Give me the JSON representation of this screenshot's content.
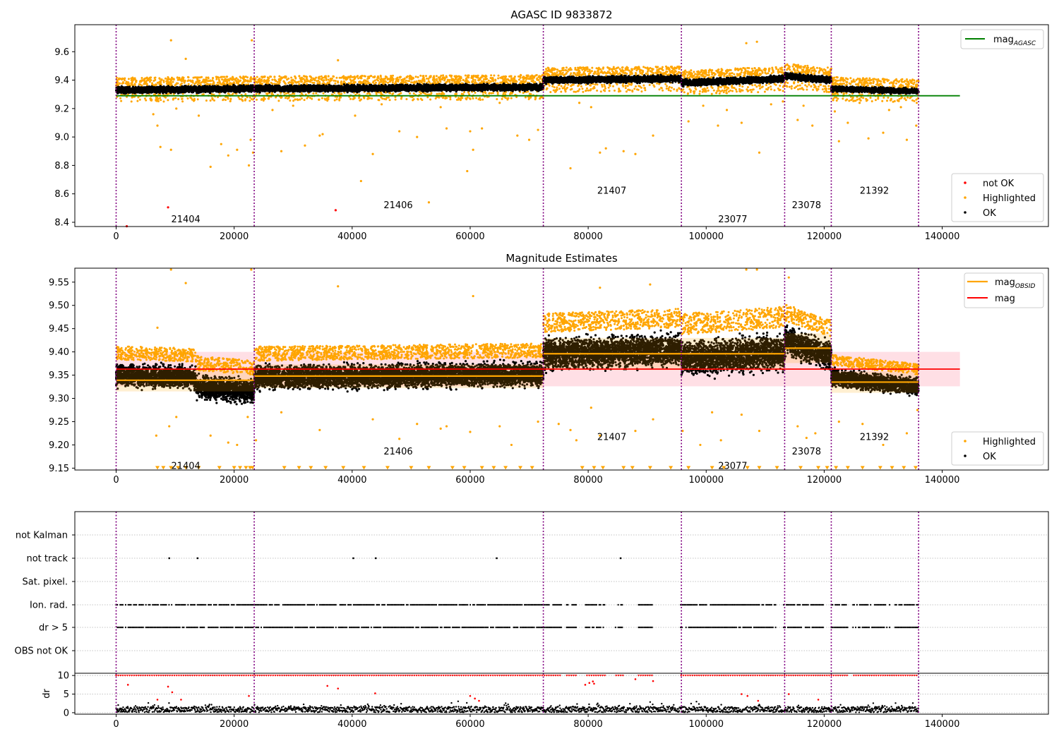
{
  "figure": {
    "panel1_title": "AGASC ID 9833872",
    "panel2_title": "Magnitude Estimates"
  },
  "colors": {
    "ok": "#000000",
    "highlighted": "#ffa500",
    "not_ok": "#ff0000",
    "mag_agasc": "#008000",
    "mag_obsid": "#ffa500",
    "mag": "#ff0000",
    "mag_band": "#ffc0cb",
    "obs_boundary": "#800080",
    "grid": "#b0b0b0"
  },
  "chart_data": [
    {
      "type": "scatter",
      "title": "AGASC ID 9833872",
      "xlim": [
        -7000,
        158000
      ],
      "ylim": [
        8.37,
        9.79
      ],
      "xticks": [
        0,
        20000,
        40000,
        60000,
        80000,
        100000,
        120000,
        140000
      ],
      "xtick_labels": [
        "0",
        "20000",
        "40000",
        "60000",
        "80000",
        "100000",
        "120000",
        "140000"
      ],
      "yticks": [
        8.4,
        8.6,
        8.8,
        9.0,
        9.2,
        9.4,
        9.6
      ],
      "ytick_labels": [
        "8.4",
        "8.6",
        "8.8",
        "9.0",
        "9.2",
        "9.4",
        "9.6"
      ],
      "obs_boundaries": [
        0,
        23400,
        72400,
        95800,
        113300,
        121200,
        136000
      ],
      "obsids": [
        {
          "label": "21404",
          "x": 11800,
          "y": 8.425
        },
        {
          "label": "21406",
          "x": 47800,
          "y": 8.525
        },
        {
          "label": "21407",
          "x": 84000,
          "y": 8.625
        },
        {
          "label": "23077",
          "x": 104500,
          "y": 8.425
        },
        {
          "label": "23078",
          "x": 117000,
          "y": 8.525
        },
        {
          "label": "21392",
          "x": 128500,
          "y": 8.625
        }
      ],
      "ok_bands": [
        {
          "x0": 0,
          "x1": 23400,
          "y0": 9.33,
          "y1": 9.34,
          "spread": 0.03
        },
        {
          "x0": 23400,
          "x1": 72400,
          "y0": 9.34,
          "y1": 9.35,
          "spread": 0.03
        },
        {
          "x0": 72400,
          "x1": 95800,
          "y0": 9.4,
          "y1": 9.41,
          "spread": 0.03
        },
        {
          "x0": 95800,
          "x1": 113300,
          "y0": 9.38,
          "y1": 9.41,
          "spread": 0.03
        },
        {
          "x0": 113300,
          "x1": 121200,
          "y0": 9.43,
          "y1": 9.4,
          "spread": 0.03
        },
        {
          "x0": 121200,
          "x1": 136000,
          "y0": 9.34,
          "y1": 9.32,
          "spread": 0.025
        }
      ],
      "highlighted_points": [
        [
          9300,
          9.68
        ],
        [
          11800,
          9.55
        ],
        [
          23000,
          9.68
        ],
        [
          37600,
          9.54
        ],
        [
          106800,
          9.66
        ],
        [
          108600,
          9.67
        ],
        [
          6300,
          9.16
        ],
        [
          7000,
          9.08
        ],
        [
          7500,
          8.93
        ],
        [
          9300,
          8.91
        ],
        [
          16000,
          8.79
        ],
        [
          17800,
          8.95
        ],
        [
          19000,
          8.87
        ],
        [
          20500,
          8.91
        ],
        [
          22500,
          8.8
        ],
        [
          22800,
          8.98
        ],
        [
          23200,
          8.89
        ],
        [
          28000,
          8.9
        ],
        [
          32000,
          8.94
        ],
        [
          34500,
          9.01
        ],
        [
          35000,
          9.02
        ],
        [
          40500,
          9.15
        ],
        [
          41500,
          8.69
        ],
        [
          43500,
          8.88
        ],
        [
          48000,
          9.04
        ],
        [
          51000,
          9.0
        ],
        [
          53000,
          8.54
        ],
        [
          56000,
          9.06
        ],
        [
          59500,
          8.76
        ],
        [
          60000,
          9.04
        ],
        [
          60500,
          8.91
        ],
        [
          62000,
          9.06
        ],
        [
          68000,
          9.01
        ],
        [
          70000,
          8.98
        ],
        [
          71500,
          9.05
        ],
        [
          77000,
          8.78
        ],
        [
          82000,
          8.89
        ],
        [
          83000,
          8.92
        ],
        [
          86000,
          8.9
        ],
        [
          88000,
          8.88
        ],
        [
          91000,
          9.01
        ],
        [
          97000,
          9.11
        ],
        [
          102000,
          9.08
        ],
        [
          106000,
          9.1
        ],
        [
          109000,
          8.89
        ],
        [
          113000,
          9.25
        ],
        [
          115500,
          9.12
        ],
        [
          118000,
          9.08
        ],
        [
          121800,
          9.18
        ],
        [
          122500,
          8.97
        ],
        [
          124000,
          9.1
        ],
        [
          127500,
          8.99
        ],
        [
          130000,
          9.03
        ],
        [
          134000,
          8.98
        ],
        [
          135600,
          9.08
        ],
        [
          5800,
          9.27
        ],
        [
          10200,
          9.2
        ],
        [
          14000,
          9.15
        ],
        [
          26500,
          9.19
        ],
        [
          30000,
          9.22
        ],
        [
          45000,
          9.23
        ],
        [
          55000,
          9.21
        ],
        [
          65000,
          9.24
        ],
        [
          78500,
          9.24
        ],
        [
          80500,
          9.21
        ],
        [
          99500,
          9.22
        ],
        [
          103500,
          9.19
        ],
        [
          111000,
          9.23
        ],
        [
          116500,
          9.22
        ],
        [
          126000,
          9.24
        ],
        [
          131000,
          9.19
        ],
        [
          133000,
          9.21
        ]
      ],
      "not_ok_points": [
        [
          8800,
          8.505
        ],
        [
          37200,
          8.485
        ],
        [
          1800,
          8.372
        ]
      ],
      "mag_agasc": {
        "value": 9.29,
        "x0": 0,
        "x1": 143000
      },
      "legend_bottom": [
        "not OK",
        "Highlighted",
        "OK"
      ],
      "legend_top": [
        "mag_AGASC"
      ]
    },
    {
      "type": "scatter",
      "title": "Magnitude Estimates",
      "xlim": [
        -7000,
        158000
      ],
      "ylim": [
        9.146,
        9.58
      ],
      "xticks": [
        0,
        20000,
        40000,
        60000,
        80000,
        100000,
        120000,
        140000
      ],
      "xtick_labels": [
        "0",
        "20000",
        "40000",
        "60000",
        "80000",
        "100000",
        "120000",
        "140000"
      ],
      "yticks": [
        9.15,
        9.2,
        9.25,
        9.3,
        9.35,
        9.4,
        9.45,
        9.5,
        9.55
      ],
      "ytick_labels": [
        "9.15",
        "9.20",
        "9.25",
        "9.30",
        "9.35",
        "9.40",
        "9.45",
        "9.50",
        "9.55"
      ],
      "obs_boundaries": [
        0,
        23400,
        72400,
        95800,
        113300,
        121200,
        136000
      ],
      "obsids": [
        {
          "label": "21404",
          "x": 11800,
          "y": 9.156
        },
        {
          "label": "21406",
          "x": 47800,
          "y": 9.187
        },
        {
          "label": "21407",
          "x": 84000,
          "y": 9.218
        },
        {
          "label": "23077",
          "x": 104500,
          "y": 9.156
        },
        {
          "label": "23078",
          "x": 117000,
          "y": 9.187
        },
        {
          "label": "21392",
          "x": 128500,
          "y": 9.218
        }
      ],
      "mag": {
        "value": 9.363,
        "band": [
          9.326,
          9.4
        ],
        "x0": 0,
        "x1": 143000
      },
      "mag_obsid": [
        {
          "x0": 0,
          "x1": 23400,
          "value": 9.339,
          "band": [
            9.315,
            9.363
          ]
        },
        {
          "x0": 23400,
          "x1": 72400,
          "value": 9.348,
          "band": [
            9.322,
            9.373
          ]
        },
        {
          "x0": 72400,
          "x1": 113300,
          "value": 9.396,
          "band": [
            9.361,
            9.43
          ]
        },
        {
          "x0": 113300,
          "x1": 121200,
          "value": 9.408,
          "band": [
            9.376,
            9.44
          ]
        },
        {
          "x0": 121200,
          "x1": 136000,
          "value": 9.335,
          "band": [
            9.312,
            9.358
          ]
        }
      ],
      "ok_bands": [
        {
          "x0": 0,
          "x1": 13500,
          "y0": 9.35,
          "y1": 9.345,
          "spread": 0.032
        },
        {
          "x0": 13500,
          "x1": 23400,
          "y0": 9.325,
          "y1": 9.315,
          "spread": 0.034
        },
        {
          "x0": 23400,
          "x1": 72400,
          "y0": 9.345,
          "y1": 9.352,
          "spread": 0.034
        },
        {
          "x0": 72400,
          "x1": 95800,
          "y0": 9.395,
          "y1": 9.405,
          "spread": 0.045
        },
        {
          "x0": 95800,
          "x1": 113300,
          "y0": 9.385,
          "y1": 9.4,
          "spread": 0.05
        },
        {
          "x0": 113300,
          "x1": 121200,
          "y0": 9.425,
          "y1": 9.39,
          "spread": 0.04
        },
        {
          "x0": 121200,
          "x1": 136000,
          "y0": 9.345,
          "y1": 9.325,
          "spread": 0.025
        }
      ],
      "highlighted_points": [
        [
          9300,
          9.577
        ],
        [
          11800,
          9.548
        ],
        [
          22900,
          9.577
        ],
        [
          37600,
          9.541
        ],
        [
          60500,
          9.52
        ],
        [
          82000,
          9.538
        ],
        [
          90500,
          9.545
        ],
        [
          106800,
          9.577
        ],
        [
          108600,
          9.577
        ],
        [
          114000,
          9.56
        ],
        [
          7000,
          9.452
        ],
        [
          6800,
          9.22
        ],
        [
          9000,
          9.24
        ],
        [
          10200,
          9.26
        ],
        [
          16000,
          9.22
        ],
        [
          19000,
          9.205
        ],
        [
          20500,
          9.2
        ],
        [
          22300,
          9.26
        ],
        [
          23700,
          9.21
        ],
        [
          28000,
          9.27
        ],
        [
          34500,
          9.232
        ],
        [
          43500,
          9.255
        ],
        [
          48000,
          9.213
        ],
        [
          51000,
          9.245
        ],
        [
          55000,
          9.235
        ],
        [
          56000,
          9.24
        ],
        [
          60000,
          9.228
        ],
        [
          65000,
          9.24
        ],
        [
          67000,
          9.2
        ],
        [
          71500,
          9.25
        ],
        [
          75000,
          9.245
        ],
        [
          77000,
          9.232
        ],
        [
          78000,
          9.21
        ],
        [
          80500,
          9.28
        ],
        [
          82000,
          9.22
        ],
        [
          88000,
          9.23
        ],
        [
          91000,
          9.255
        ],
        [
          96000,
          9.23
        ],
        [
          99000,
          9.2
        ],
        [
          101000,
          9.27
        ],
        [
          102500,
          9.21
        ],
        [
          106000,
          9.265
        ],
        [
          109000,
          9.23
        ],
        [
          115500,
          9.24
        ],
        [
          117000,
          9.215
        ],
        [
          118500,
          9.225
        ],
        [
          122500,
          9.25
        ],
        [
          126500,
          9.245
        ],
        [
          130000,
          9.2
        ],
        [
          134000,
          9.225
        ],
        [
          135800,
          9.275
        ]
      ],
      "limit_markers": [
        7000,
        8000,
        9300,
        10500,
        11800,
        14000,
        17500,
        20000,
        21000,
        22000,
        22700,
        23100,
        28500,
        31000,
        33000,
        35500,
        38500,
        42000,
        46000,
        50000,
        53000,
        57000,
        59000,
        62000,
        64000,
        66000,
        68500,
        70500,
        79000,
        81000,
        82500,
        86000,
        87500,
        90500,
        94000,
        97000,
        101000,
        103000,
        107000,
        109000,
        112000,
        116000,
        119000,
        120500,
        122000,
        124000,
        126500,
        129500,
        131500,
        133500,
        135500
      ],
      "limit_value": 9.15,
      "legend_bottom": [
        "Highlighted",
        "OK"
      ],
      "legend_top": [
        "mag_OBSID",
        "mag"
      ]
    },
    {
      "type": "scatter",
      "title": "",
      "xlim": [
        -7000,
        158000
      ],
      "categories": [
        "not Kalman",
        "not track",
        "Sat. pixel.",
        "Ion. rad.",
        "dr > 5",
        "OBS not OK"
      ],
      "obs_boundaries": [
        0,
        23400,
        72400,
        95800,
        113300,
        121200,
        136000
      ],
      "not_track_points": [
        9000,
        13800,
        40200,
        44000,
        64500,
        85500
      ],
      "ion_rad_gaps": [
        [
          75500,
          76200
        ],
        [
          78000,
          79500
        ],
        [
          83000,
          84500
        ],
        [
          86000,
          88500
        ],
        [
          91000,
          95500
        ],
        [
          112000,
          113000
        ],
        [
          120000,
          121200
        ],
        [
          124000,
          124700
        ],
        [
          131200,
          132000
        ]
      ],
      "dr5_gaps": [
        [
          75500,
          76200
        ],
        [
          78000,
          79500
        ],
        [
          83000,
          84500
        ],
        [
          86000,
          88500
        ],
        [
          91000,
          95500
        ],
        [
          112000,
          113000
        ],
        [
          120000,
          121200
        ],
        [
          124000,
          124700
        ],
        [
          131200,
          132000
        ]
      ],
      "x_range": [
        0,
        136000
      ]
    },
    {
      "type": "scatter",
      "title": "",
      "ylabel": "dr",
      "xlim": [
        -7000,
        158000
      ],
      "ylim": [
        -0.4,
        10.6
      ],
      "yticks": [
        0,
        5,
        10
      ],
      "ytick_labels": [
        "0",
        "5",
        "10"
      ],
      "xticks": [
        0,
        20000,
        40000,
        60000,
        80000,
        100000,
        120000,
        140000
      ],
      "xtick_labels": [
        "0",
        "20000",
        "40000",
        "60000",
        "80000",
        "100000",
        "120000",
        "140000"
      ],
      "obs_boundaries": [
        0,
        23400,
        72400,
        95800,
        113300,
        121200,
        136000
      ],
      "red_cap_value": 10,
      "red_scatter": [
        [
          2000,
          7.5
        ],
        [
          7000,
          3.5
        ],
        [
          8800,
          7.0
        ],
        [
          9500,
          5.5
        ],
        [
          11000,
          3.5
        ],
        [
          22500,
          4.5
        ],
        [
          35800,
          7.2
        ],
        [
          37600,
          6.5
        ],
        [
          43900,
          5.2
        ],
        [
          60000,
          4.5
        ],
        [
          60800,
          3.8
        ],
        [
          61500,
          3.2
        ],
        [
          79500,
          7.5
        ],
        [
          80200,
          8.0
        ],
        [
          80800,
          8.4
        ],
        [
          81000,
          7.8
        ],
        [
          88000,
          9.0
        ],
        [
          91000,
          8.5
        ],
        [
          106000,
          5.0
        ],
        [
          107000,
          4.5
        ],
        [
          108800,
          3.2
        ],
        [
          114000,
          5.0
        ],
        [
          119000,
          3.5
        ]
      ],
      "black_band": {
        "y0": 0.1,
        "y1": 1.6
      }
    }
  ]
}
